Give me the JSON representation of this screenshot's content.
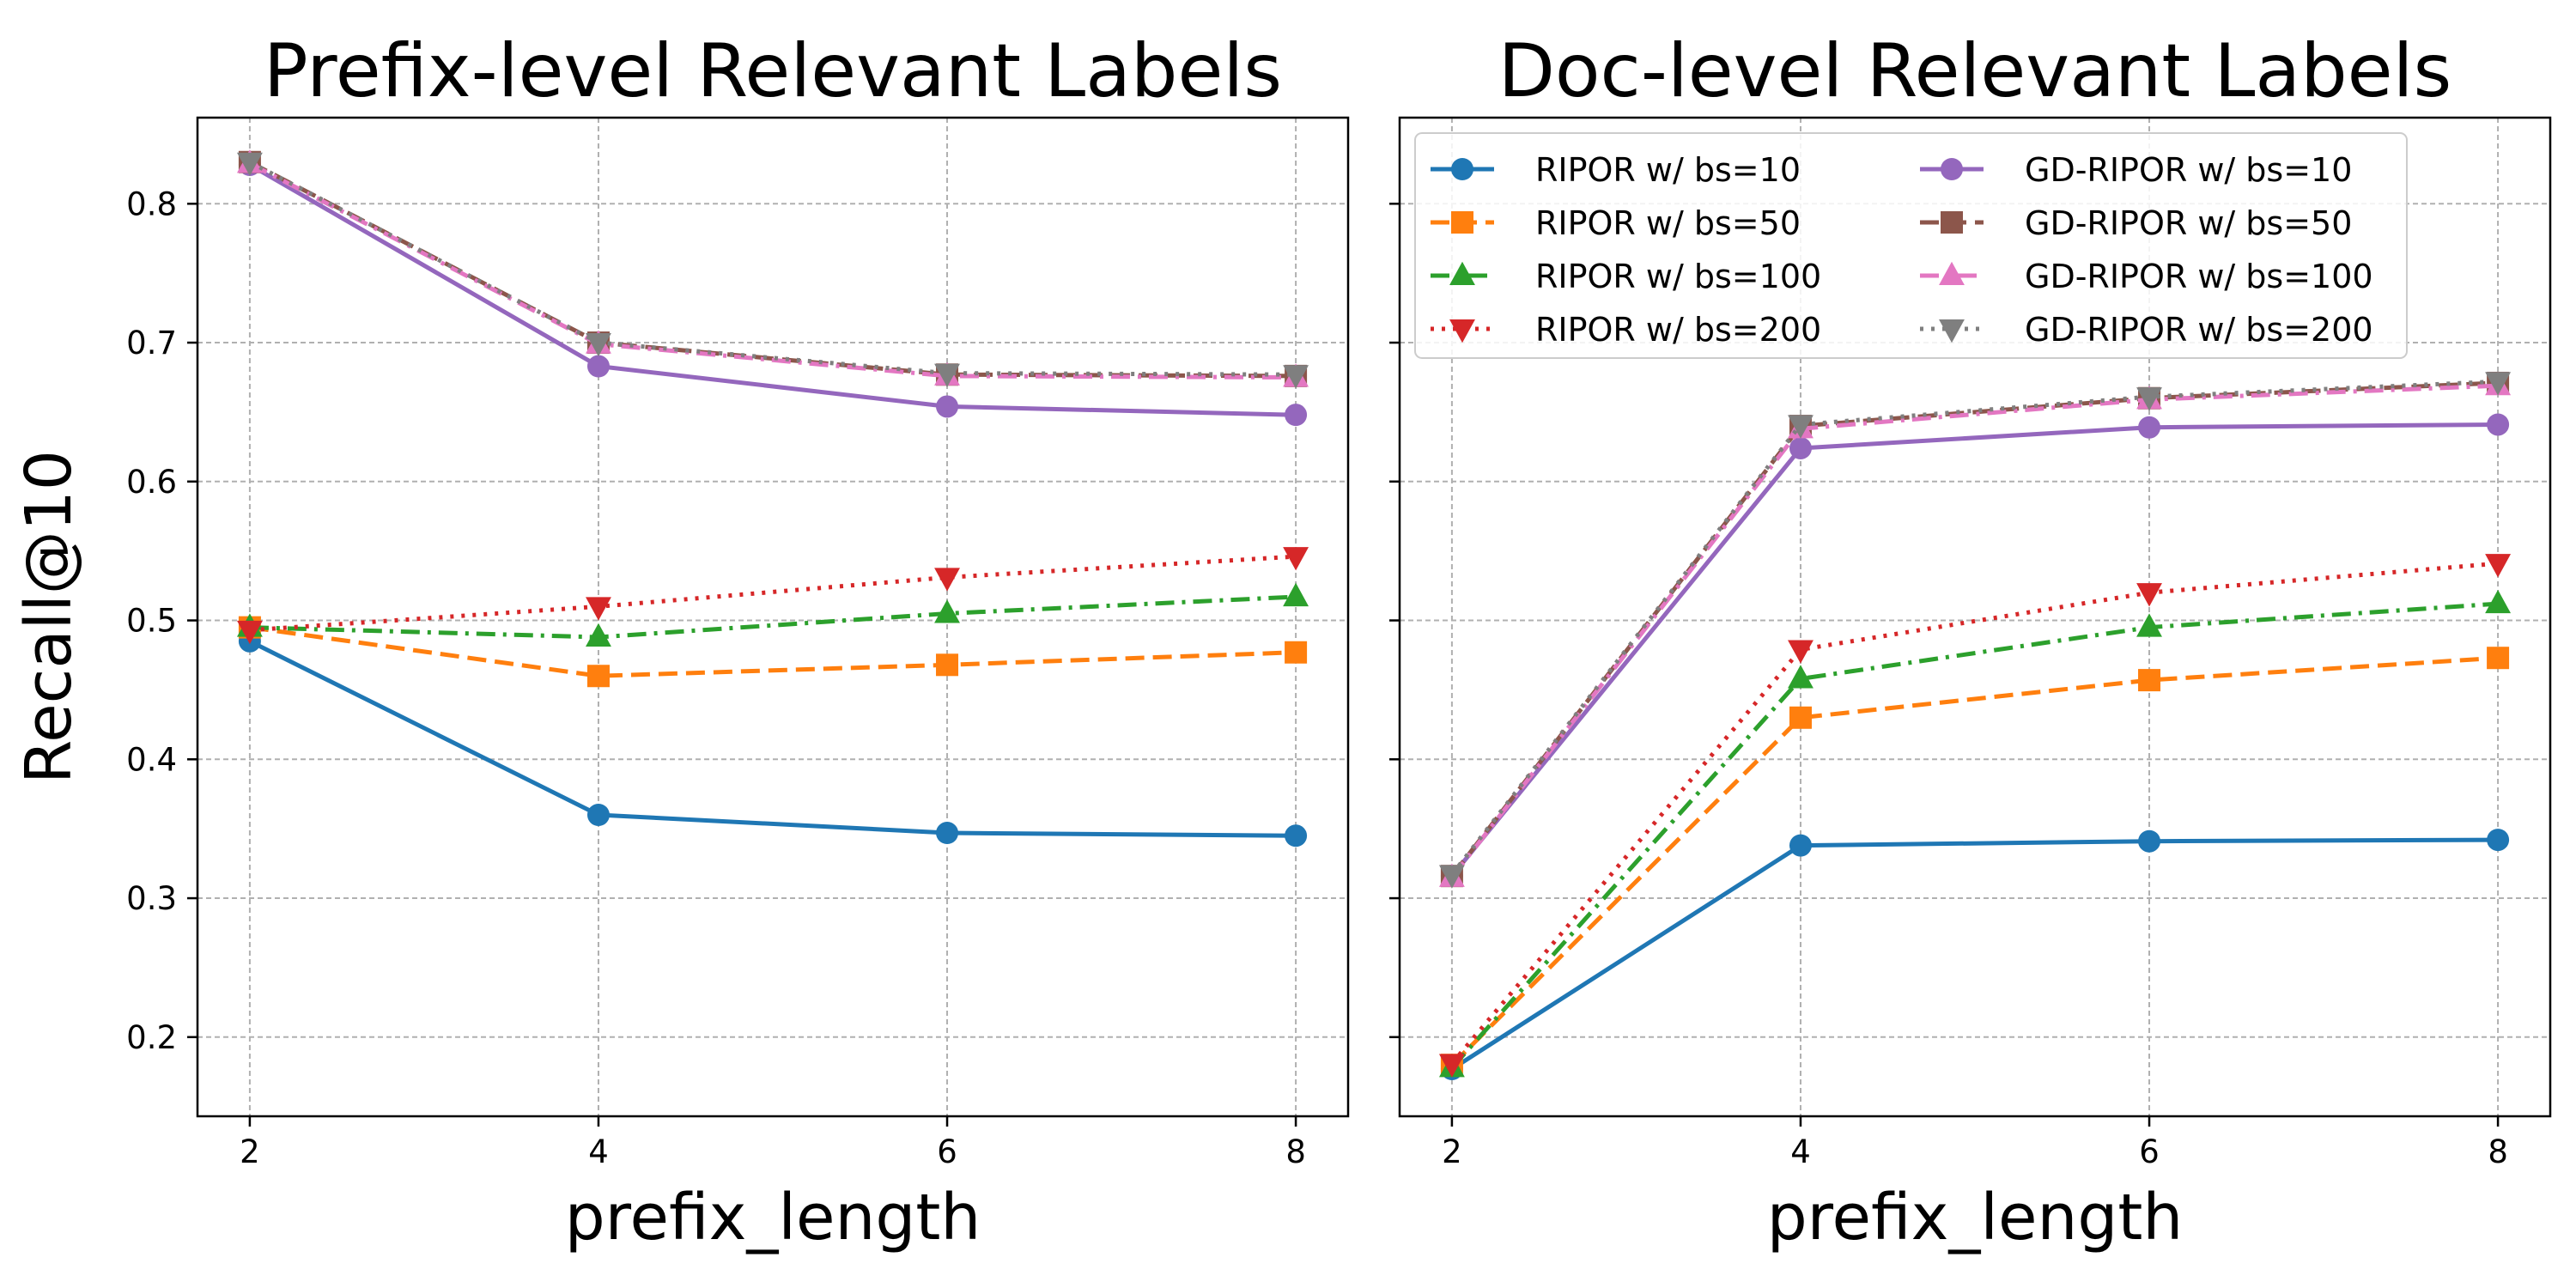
{
  "chart_data": [
    {
      "type": "line",
      "title": "Prefix-level Relevant Labels",
      "xlabel": "prefix_length",
      "ylabel": "Recall@10",
      "x": [
        2,
        4,
        6,
        8
      ],
      "xticks": [
        "2",
        "4",
        "6",
        "8"
      ],
      "yticks": [
        "0.2",
        "0.3",
        "0.4",
        "0.5",
        "0.6",
        "0.7",
        "0.8"
      ],
      "xlim": [
        1.7,
        8.3
      ],
      "ylim": [
        0.143,
        0.862
      ],
      "grid": true,
      "series": [
        {
          "name": "RIPOR w/ bs=10",
          "color": "#1f77b4",
          "marker": "circle",
          "dash": "solid",
          "values": [
            0.485,
            0.36,
            0.347,
            0.345
          ]
        },
        {
          "name": "RIPOR w/ bs=50",
          "color": "#ff7f0e",
          "marker": "square",
          "dash": "dashed",
          "values": [
            0.495,
            0.46,
            0.468,
            0.477
          ]
        },
        {
          "name": "RIPOR w/ bs=100",
          "color": "#2ca02c",
          "marker": "triangle-up",
          "dash": "dashdot",
          "values": [
            0.495,
            0.488,
            0.505,
            0.517
          ]
        },
        {
          "name": "RIPOR w/ bs=200",
          "color": "#d62728",
          "marker": "triangle-down",
          "dash": "dotted",
          "values": [
            0.493,
            0.51,
            0.531,
            0.546
          ]
        },
        {
          "name": "GD-RIPOR w/ bs=10",
          "color": "#9467bd",
          "marker": "circle",
          "dash": "solid",
          "values": [
            0.828,
            0.683,
            0.654,
            0.648
          ]
        },
        {
          "name": "GD-RIPOR w/ bs=50",
          "color": "#8c564b",
          "marker": "square",
          "dash": "dashed",
          "values": [
            0.83,
            0.7,
            0.677,
            0.676
          ]
        },
        {
          "name": "GD-RIPOR w/ bs=100",
          "color": "#e377c2",
          "marker": "triangle-up",
          "dash": "dashdot",
          "values": [
            0.829,
            0.699,
            0.676,
            0.675
          ]
        },
        {
          "name": "GD-RIPOR w/ bs=200",
          "color": "#7f7f7f",
          "marker": "triangle-down",
          "dash": "dotted",
          "values": [
            0.83,
            0.7,
            0.678,
            0.677
          ]
        }
      ]
    },
    {
      "type": "line",
      "title": "Doc-level Relevant Labels",
      "xlabel": "prefix_length",
      "ylabel": "",
      "x": [
        2,
        4,
        6,
        8
      ],
      "xticks": [
        "2",
        "4",
        "6",
        "8"
      ],
      "xlim": [
        1.7,
        8.3
      ],
      "ylim": [
        0.143,
        0.862
      ],
      "grid": true,
      "legend": "upper left, 2 columns",
      "series": [
        {
          "name": "RIPOR w/ bs=10",
          "color": "#1f77b4",
          "marker": "circle",
          "dash": "solid",
          "values": [
            0.177,
            0.338,
            0.341,
            0.342
          ]
        },
        {
          "name": "RIPOR w/ bs=50",
          "color": "#ff7f0e",
          "marker": "square",
          "dash": "dashed",
          "values": [
            0.18,
            0.43,
            0.457,
            0.473
          ]
        },
        {
          "name": "RIPOR w/ bs=100",
          "color": "#2ca02c",
          "marker": "triangle-up",
          "dash": "dashdot",
          "values": [
            0.178,
            0.458,
            0.495,
            0.512
          ]
        },
        {
          "name": "RIPOR w/ bs=200",
          "color": "#d62728",
          "marker": "triangle-down",
          "dash": "dotted",
          "values": [
            0.181,
            0.479,
            0.52,
            0.541
          ]
        },
        {
          "name": "GD-RIPOR w/ bs=10",
          "color": "#9467bd",
          "marker": "circle",
          "dash": "solid",
          "values": [
            0.316,
            0.624,
            0.639,
            0.641
          ]
        },
        {
          "name": "GD-RIPOR w/ bs=50",
          "color": "#8c564b",
          "marker": "square",
          "dash": "dashed",
          "values": [
            0.316,
            0.64,
            0.66,
            0.671
          ]
        },
        {
          "name": "GD-RIPOR w/ bs=100",
          "color": "#e377c2",
          "marker": "triangle-up",
          "dash": "dashdot",
          "values": [
            0.315,
            0.638,
            0.659,
            0.669
          ]
        },
        {
          "name": "GD-RIPOR w/ bs=200",
          "color": "#7f7f7f",
          "marker": "triangle-down",
          "dash": "dotted",
          "values": [
            0.317,
            0.641,
            0.661,
            0.672
          ]
        }
      ]
    }
  ]
}
